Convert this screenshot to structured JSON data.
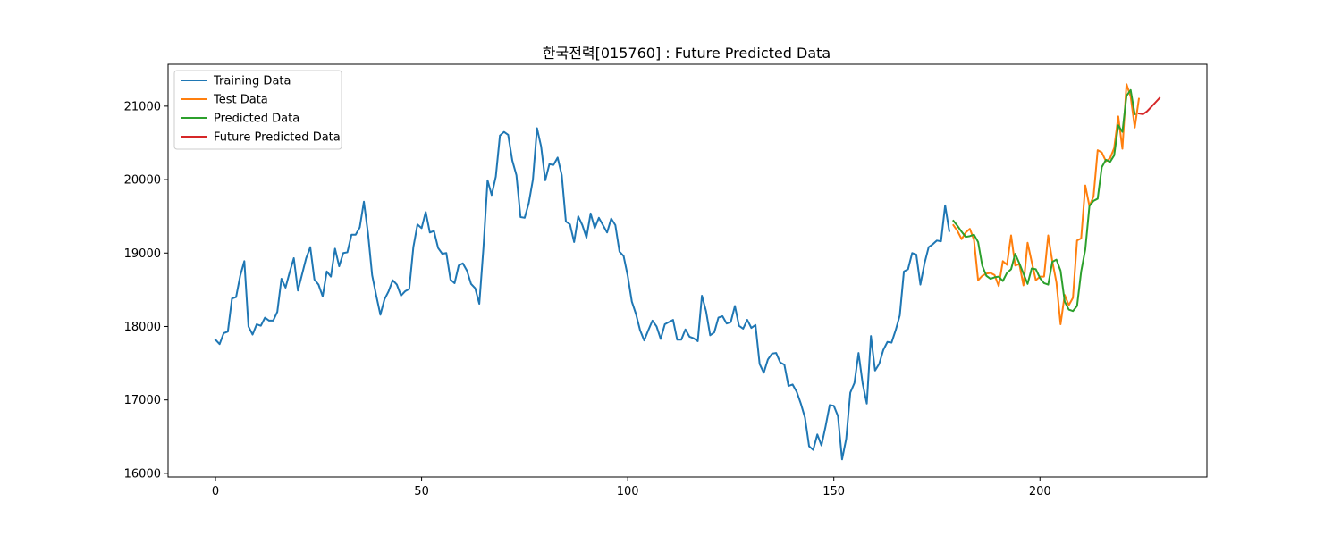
{
  "chart_data": {
    "type": "line",
    "title": "한국전력[015760] : Future Predicted Data",
    "xlabel": "",
    "ylabel": "",
    "xlim": [
      -11.5,
      240.5
    ],
    "ylim": [
      15950,
      21570
    ],
    "xticks": [
      0,
      50,
      100,
      150,
      200
    ],
    "yticks": [
      16000,
      17000,
      18000,
      19000,
      20000,
      21000
    ],
    "grid": false,
    "legend_position": "top-left",
    "series": [
      {
        "name": "Training Data",
        "color": "#1f77b4",
        "x_start": 0,
        "values": [
          17820,
          17760,
          17910,
          17930,
          18380,
          18400,
          18690,
          18890,
          18000,
          17890,
          18030,
          18010,
          18120,
          18080,
          18080,
          18200,
          18650,
          18530,
          18740,
          18930,
          18490,
          18710,
          18930,
          19080,
          18640,
          18570,
          18410,
          18750,
          18680,
          19060,
          18820,
          19000,
          19010,
          19250,
          19250,
          19350,
          19700,
          19270,
          18700,
          18420,
          18160,
          18370,
          18480,
          18630,
          18570,
          18420,
          18480,
          18510,
          19080,
          19390,
          19340,
          19560,
          19280,
          19300,
          19070,
          18990,
          19000,
          18640,
          18590,
          18830,
          18860,
          18760,
          18580,
          18520,
          18310,
          19070,
          19990,
          19790,
          20040,
          20600,
          20650,
          20610,
          20260,
          20060,
          19490,
          19480,
          19680,
          20000,
          20700,
          20450,
          19990,
          20210,
          20200,
          20300,
          20060,
          19430,
          19390,
          19150,
          19500,
          19380,
          19210,
          19540,
          19340,
          19480,
          19380,
          19280,
          19470,
          19380,
          19020,
          18960,
          18690,
          18340,
          18170,
          17950,
          17810,
          17950,
          18080,
          18000,
          17830,
          18030,
          18060,
          18090,
          17820,
          17820,
          17960,
          17860,
          17840,
          17800,
          18420,
          18210,
          17880,
          17920,
          18120,
          18140,
          18040,
          18060,
          18280,
          18010,
          17970,
          18090,
          17980,
          18020,
          17490,
          17370,
          17550,
          17630,
          17640,
          17510,
          17480,
          17190,
          17210,
          17110,
          16950,
          16760,
          16370,
          16320,
          16530,
          16380,
          16640,
          16930,
          16920,
          16780,
          16190,
          16470,
          17100,
          17230,
          17640,
          17220,
          16950,
          17870,
          17400,
          17490,
          17680,
          17790,
          17780,
          17950,
          18150,
          18750,
          18780,
          19000,
          18980,
          18570,
          18860,
          19080,
          19120,
          19170,
          19160,
          19650,
          19300
        ]
      },
      {
        "name": "Test Data",
        "color": "#ff7f0e",
        "x_start": 179,
        "values": [
          19380,
          19300,
          19190,
          19280,
          19330,
          19180,
          18630,
          18690,
          18720,
          18730,
          18700,
          18550,
          18890,
          18840,
          19240,
          18830,
          18850,
          18560,
          19140,
          18880,
          18630,
          18680,
          18680,
          19240,
          18890,
          18600,
          18030,
          18430,
          18290,
          18390,
          19170,
          19200,
          19920,
          19640,
          19770,
          20400,
          20370,
          20250,
          20290,
          20430,
          20860,
          20420,
          21300,
          21130,
          20710,
          21100
        ]
      },
      {
        "name": "Predicted Data",
        "color": "#2ca02c",
        "x_start": 179,
        "values": [
          19440,
          19370,
          19290,
          19220,
          19230,
          19250,
          19150,
          18830,
          18690,
          18650,
          18670,
          18680,
          18620,
          18730,
          18780,
          18990,
          18860,
          18720,
          18580,
          18790,
          18780,
          18660,
          18590,
          18570,
          18880,
          18910,
          18760,
          18340,
          18230,
          18210,
          18280,
          18750,
          19050,
          19640,
          19710,
          19740,
          20170,
          20270,
          20240,
          20330,
          20740,
          20650,
          21140,
          21220,
          20890
        ]
      },
      {
        "name": "Future Predicted Data",
        "color": "#d62728",
        "x_start": 224,
        "values": [
          20900,
          20890,
          20930,
          20990,
          21050,
          21110
        ]
      }
    ]
  }
}
